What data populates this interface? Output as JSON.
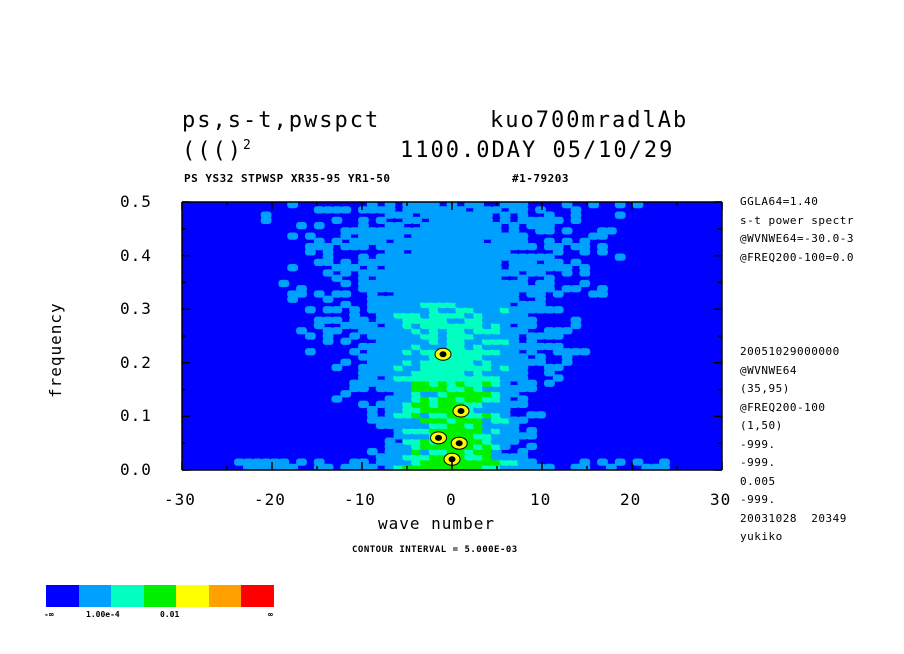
{
  "header": {
    "title_left": "ps,s-t,pwspct",
    "title_right": "kuo700mradlAb",
    "subtitle_left": "((()",
    "subtitle_sup": "2",
    "subtitle_right": "1100.0DAY 05/10/29",
    "info_left": "PS YS32 STPWSP XR35-95 YR1-50",
    "info_right": "#1-79203"
  },
  "side_top": [
    "GGLA64=1.40",
    "s-t power spectr",
    "@WVNWE64=-30.0-3",
    "@FREQ200-100=0.0"
  ],
  "side_bottom": [
    "20051029000000",
    "@WVNWE64",
    "(35,95)",
    "@FREQ200-100",
    "(1,50)",
    "-999.",
    "-999.",
    "0.005",
    "-999.",
    "20031028  20349",
    "yukiko"
  ],
  "contour_text": "CONTOUR INTERVAL = 5.000E-03",
  "colorbar": {
    "colors": [
      "#0000ff",
      "#00a0ff",
      "#00ffc0",
      "#00f000",
      "#ffff00",
      "#ffa000",
      "#ff0000"
    ],
    "labels": [
      "-∞",
      "1.00e-4",
      "0.01",
      "∞"
    ]
  },
  "chart_data": {
    "type": "heatmap",
    "title": "ps,s-t,pwspct",
    "xlabel": "wave number",
    "ylabel": "frequency",
    "xlim": [
      -30,
      30
    ],
    "ylim": [
      0.0,
      0.5
    ],
    "x_ticks": [
      "-30",
      "-20",
      "-10",
      "0",
      "10",
      "20",
      "30"
    ],
    "y_ticks": [
      "0.0",
      "0.1",
      "0.2",
      "0.3",
      "0.4",
      "0.5"
    ],
    "contour_interval": 0.005,
    "levels": [
      "-∞",
      "1.00e-4",
      "0.01",
      "∞"
    ],
    "description_regions": [
      {
        "level": 1,
        "x": [
          -20,
          20
        ],
        "y": [
          0.0,
          0.5
        ]
      },
      {
        "level": 2,
        "x": [
          -7,
          7
        ],
        "y": [
          0.0,
          0.3
        ]
      },
      {
        "level": 3,
        "x": [
          -4,
          4
        ],
        "y": [
          0.0,
          0.12
        ]
      }
    ]
  }
}
